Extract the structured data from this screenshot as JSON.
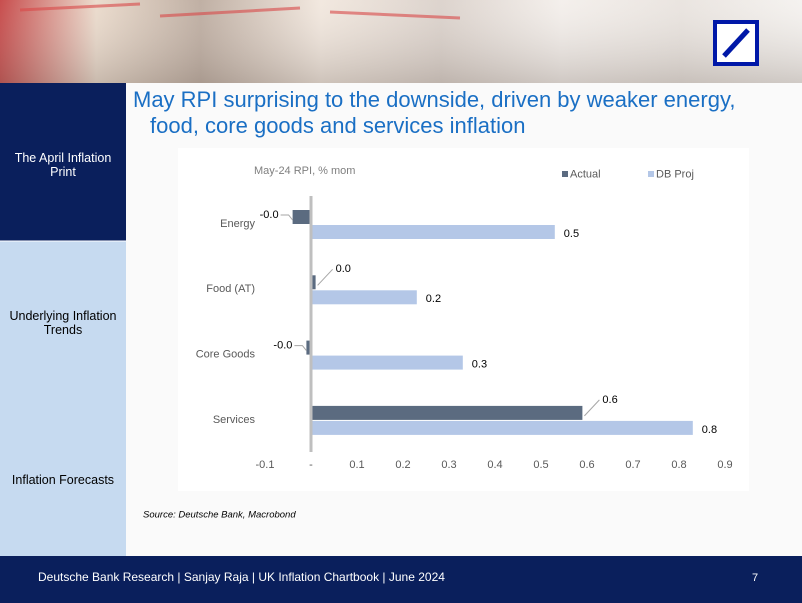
{
  "slide": {
    "title_lines": [
      "May RPI surprising to the downside, driven by weaker energy,",
      "food, core goods and services inflation"
    ],
    "sidebar": [
      "The April Inflation Print",
      "Underlying Inflation Trends",
      "Inflation Forecasts"
    ],
    "source": "Source: Deutsche Bank, Macrobond",
    "footer": "Deutsche Bank Research | Sanjay Raja | UK Inflation Chartbook | June 2024",
    "page_number": "7"
  },
  "chart_data": {
    "type": "hbar",
    "subtitle": "May-24 RPI, % mom",
    "categories": [
      "Energy",
      "Food (AT)",
      "Core Goods",
      "Services"
    ],
    "series": [
      {
        "name": "Actual",
        "color": "#5b6b80",
        "values": [
          -0.04,
          0.01,
          -0.01,
          0.59
        ],
        "value_labels": [
          "-0.0",
          "0.0",
          "-0.0",
          "0.6"
        ]
      },
      {
        "name": "DB Proj",
        "color": "#b4c7e7",
        "values": [
          0.53,
          0.23,
          0.33,
          0.83
        ],
        "value_labels": [
          "0.5",
          "0.2",
          "0.3",
          "0.8"
        ]
      }
    ],
    "xlim": [
      -0.1,
      0.9
    ],
    "xticks": [
      -0.1,
      {
        "value": 0,
        "label": "-"
      },
      0.1,
      0.2,
      0.3,
      0.4,
      0.5,
      0.6,
      0.7,
      0.8,
      0.9
    ],
    "legend": "top-right",
    "grid": false
  }
}
